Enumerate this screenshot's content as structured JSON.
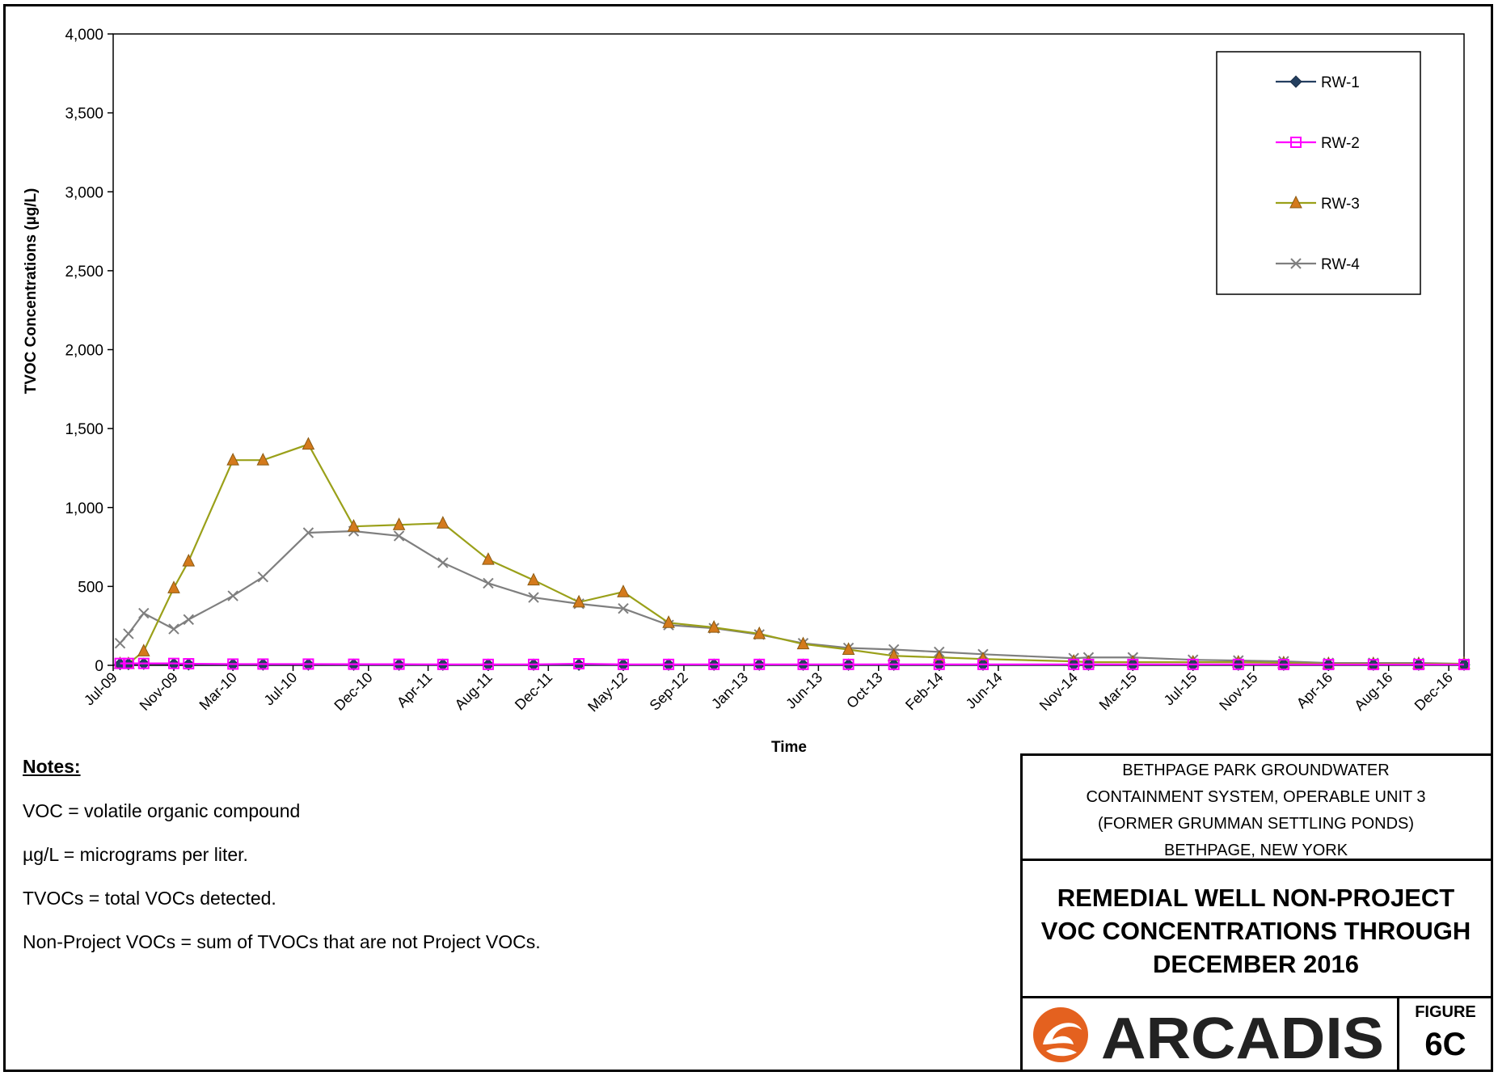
{
  "chart_data": {
    "type": "line",
    "xlabel": "Time",
    "ylabel": "TVOC Concentrations (µg/L)",
    "ylim": [
      0,
      4000
    ],
    "yticks": [
      "0",
      "500",
      "1,000",
      "1,500",
      "2,000",
      "2,500",
      "3,000",
      "3,500",
      "4,000"
    ],
    "ytick_values": [
      0,
      500,
      1000,
      1500,
      2000,
      2500,
      3000,
      3500,
      4000
    ],
    "xlim": [
      "2009-07-01",
      "2017-01-01"
    ],
    "xtick_labels": [
      "Jul-09",
      "Nov-09",
      "Mar-10",
      "Jul-10",
      "Dec-10",
      "Apr-11",
      "Aug-11",
      "Dec-11",
      "May-12",
      "Sep-12",
      "Jan-13",
      "Jun-13",
      "Oct-13",
      "Feb-14",
      "Jun-14",
      "Nov-14",
      "Mar-15",
      "Jul-15",
      "Nov-15",
      "Apr-16",
      "Aug-16",
      "Dec-16"
    ],
    "xtick_dates": [
      "2009-07-01",
      "2009-11-01",
      "2010-03-01",
      "2010-07-01",
      "2010-12-01",
      "2011-04-01",
      "2011-08-01",
      "2011-12-01",
      "2012-05-01",
      "2012-09-01",
      "2013-01-01",
      "2013-06-01",
      "2013-10-01",
      "2014-02-01",
      "2014-06-01",
      "2014-11-01",
      "2015-03-01",
      "2015-07-01",
      "2015-11-01",
      "2016-04-01",
      "2016-08-01",
      "2016-12-01"
    ],
    "grid": false,
    "legend_position": "top-right",
    "series": [
      {
        "name": "RW-1",
        "color": "#243f60",
        "marker": "diamond",
        "points": [
          [
            "2009-07-15",
            8
          ],
          [
            "2009-08-01",
            8
          ],
          [
            "2009-09-01",
            10
          ],
          [
            "2009-11-01",
            8
          ],
          [
            "2009-12-01",
            6
          ],
          [
            "2010-03-01",
            5
          ],
          [
            "2010-05-01",
            5
          ],
          [
            "2010-08-01",
            5
          ],
          [
            "2010-11-01",
            4
          ],
          [
            "2011-02-01",
            4
          ],
          [
            "2011-05-01",
            4
          ],
          [
            "2011-08-01",
            4
          ],
          [
            "2011-11-01",
            4
          ],
          [
            "2012-02-01",
            4
          ],
          [
            "2012-05-01",
            4
          ],
          [
            "2012-08-01",
            4
          ],
          [
            "2012-11-01",
            4
          ],
          [
            "2013-02-01",
            4
          ],
          [
            "2013-05-01",
            4
          ],
          [
            "2013-08-01",
            4
          ],
          [
            "2013-11-01",
            4
          ],
          [
            "2014-02-01",
            4
          ],
          [
            "2014-05-01",
            4
          ],
          [
            "2014-11-01",
            4
          ],
          [
            "2014-12-01",
            4
          ],
          [
            "2015-03-01",
            4
          ],
          [
            "2015-07-01",
            4
          ],
          [
            "2015-10-01",
            4
          ],
          [
            "2016-01-01",
            4
          ],
          [
            "2016-04-01",
            4
          ],
          [
            "2016-07-01",
            4
          ],
          [
            "2016-10-01",
            4
          ],
          [
            "2017-01-01",
            4
          ]
        ]
      },
      {
        "name": "RW-2",
        "color": "#ff00ff",
        "marker": "square",
        "points": [
          [
            "2009-07-15",
            12
          ],
          [
            "2009-08-01",
            12
          ],
          [
            "2009-09-01",
            12
          ],
          [
            "2009-11-01",
            12
          ],
          [
            "2009-12-01",
            10
          ],
          [
            "2010-03-01",
            8
          ],
          [
            "2010-05-01",
            8
          ],
          [
            "2010-08-01",
            8
          ],
          [
            "2010-11-01",
            7
          ],
          [
            "2011-02-01",
            7
          ],
          [
            "2011-05-01",
            6
          ],
          [
            "2011-08-01",
            6
          ],
          [
            "2011-11-01",
            6
          ],
          [
            "2012-02-01",
            10
          ],
          [
            "2012-05-01",
            6
          ],
          [
            "2012-08-01",
            6
          ],
          [
            "2012-11-01",
            6
          ],
          [
            "2013-02-01",
            6
          ],
          [
            "2013-05-01",
            6
          ],
          [
            "2013-08-01",
            6
          ],
          [
            "2013-11-01",
            6
          ],
          [
            "2014-02-01",
            6
          ],
          [
            "2014-05-01",
            6
          ],
          [
            "2014-11-01",
            6
          ],
          [
            "2014-12-01",
            6
          ],
          [
            "2015-03-01",
            6
          ],
          [
            "2015-07-01",
            6
          ],
          [
            "2015-10-01",
            6
          ],
          [
            "2016-01-01",
            5
          ],
          [
            "2016-04-01",
            5
          ],
          [
            "2016-07-01",
            5
          ],
          [
            "2016-10-01",
            5
          ],
          [
            "2017-01-01",
            5
          ]
        ]
      },
      {
        "name": "RW-3",
        "color": "#9aa019",
        "marker": "triangle",
        "points": [
          [
            "2009-07-15",
            10
          ],
          [
            "2009-08-01",
            10
          ],
          [
            "2009-09-01",
            90
          ],
          [
            "2009-11-01",
            490
          ],
          [
            "2009-12-01",
            660
          ],
          [
            "2010-03-01",
            1300
          ],
          [
            "2010-05-01",
            1300
          ],
          [
            "2010-08-01",
            1400
          ],
          [
            "2010-11-01",
            880
          ],
          [
            "2011-02-01",
            890
          ],
          [
            "2011-05-01",
            900
          ],
          [
            "2011-08-01",
            670
          ],
          [
            "2011-11-01",
            540
          ],
          [
            "2012-02-01",
            400
          ],
          [
            "2012-05-01",
            465
          ],
          [
            "2012-08-01",
            270
          ],
          [
            "2012-11-01",
            240
          ],
          [
            "2013-02-01",
            200
          ],
          [
            "2013-05-01",
            135
          ],
          [
            "2013-08-01",
            100
          ],
          [
            "2013-11-01",
            60
          ],
          [
            "2014-02-01",
            50
          ],
          [
            "2014-05-01",
            40
          ],
          [
            "2014-11-01",
            25
          ],
          [
            "2014-12-01",
            20
          ],
          [
            "2015-03-01",
            20
          ],
          [
            "2015-07-01",
            20
          ],
          [
            "2015-10-01",
            20
          ],
          [
            "2016-01-01",
            15
          ],
          [
            "2016-04-01",
            10
          ],
          [
            "2016-07-01",
            10
          ],
          [
            "2016-10-01",
            10
          ],
          [
            "2017-01-01",
            10
          ]
        ]
      },
      {
        "name": "RW-4",
        "color": "#7f7f7f",
        "marker": "x",
        "points": [
          [
            "2009-07-15",
            140
          ],
          [
            "2009-08-01",
            200
          ],
          [
            "2009-09-01",
            330
          ],
          [
            "2009-11-01",
            230
          ],
          [
            "2009-12-01",
            290
          ],
          [
            "2010-03-01",
            440
          ],
          [
            "2010-05-01",
            560
          ],
          [
            "2010-08-01",
            840
          ],
          [
            "2010-11-01",
            850
          ],
          [
            "2011-02-01",
            820
          ],
          [
            "2011-05-01",
            650
          ],
          [
            "2011-08-01",
            520
          ],
          [
            "2011-11-01",
            430
          ],
          [
            "2012-02-01",
            390
          ],
          [
            "2012-05-01",
            360
          ],
          [
            "2012-08-01",
            255
          ],
          [
            "2012-11-01",
            235
          ],
          [
            "2013-02-01",
            195
          ],
          [
            "2013-05-01",
            140
          ],
          [
            "2013-08-01",
            110
          ],
          [
            "2013-11-01",
            100
          ],
          [
            "2014-02-01",
            85
          ],
          [
            "2014-05-01",
            70
          ],
          [
            "2014-11-01",
            45
          ],
          [
            "2014-12-01",
            50
          ],
          [
            "2015-03-01",
            50
          ],
          [
            "2015-07-01",
            35
          ],
          [
            "2015-10-01",
            30
          ],
          [
            "2016-01-01",
            25
          ],
          [
            "2016-04-01",
            15
          ],
          [
            "2016-07-01",
            15
          ],
          [
            "2016-10-01",
            15
          ],
          [
            "2017-01-01",
            10
          ]
        ]
      }
    ]
  },
  "notes": {
    "heading": "Notes:",
    "lines": [
      "VOC = volatile organic compound",
      "µg/L = micrograms per liter.",
      "TVOCs = total VOCs detected.",
      "Non-Project VOCs = sum of TVOCs that are not Project VOCs."
    ]
  },
  "titleblock": {
    "client_lines": [
      "BETHPAGE PARK GROUNDWATER",
      "CONTAINMENT SYSTEM, OPERABLE UNIT 3",
      "(FORMER GRUMMAN SETTLING PONDS)",
      "BETHPAGE, NEW YORK"
    ],
    "title_lines": [
      "REMEDIAL WELL NON-PROJECT",
      "VOC CONCENTRATIONS THROUGH",
      "DECEMBER 2016"
    ],
    "company": "ARCADIS",
    "figure_label": "FIGURE",
    "figure_number": "6C",
    "brand_color": "#e4611f"
  }
}
